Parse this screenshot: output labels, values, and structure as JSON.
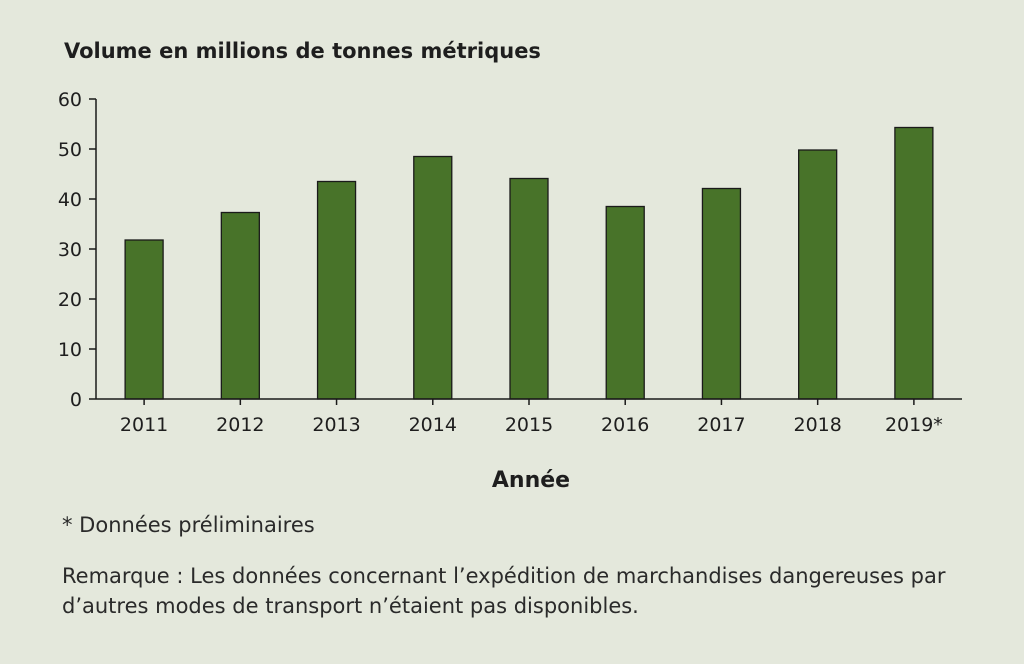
{
  "chart_data": {
    "type": "bar",
    "title": "Volume en millions de tonnes métriques",
    "xlabel": "Année",
    "ylabel": "",
    "categories": [
      "2011",
      "2012",
      "2013",
      "2014",
      "2015",
      "2016",
      "2017",
      "2018",
      "2019*"
    ],
    "values": [
      31.8,
      37.3,
      43.5,
      48.5,
      44.1,
      38.5,
      42.1,
      49.8,
      54.3
    ],
    "ylim": [
      0,
      60
    ],
    "yticks": [
      0,
      10,
      20,
      30,
      40,
      50,
      60
    ],
    "grid": false,
    "legend": "none",
    "bar_color": "#487329",
    "bar_edge_color": "#1a1a1a"
  },
  "notes": {
    "footnote": "* Données préliminaires",
    "remark": "Remarque : Les données concernant l’expédition de marchandises dangereuses par d’autres modes de transport n’étaient pas disponibles."
  }
}
